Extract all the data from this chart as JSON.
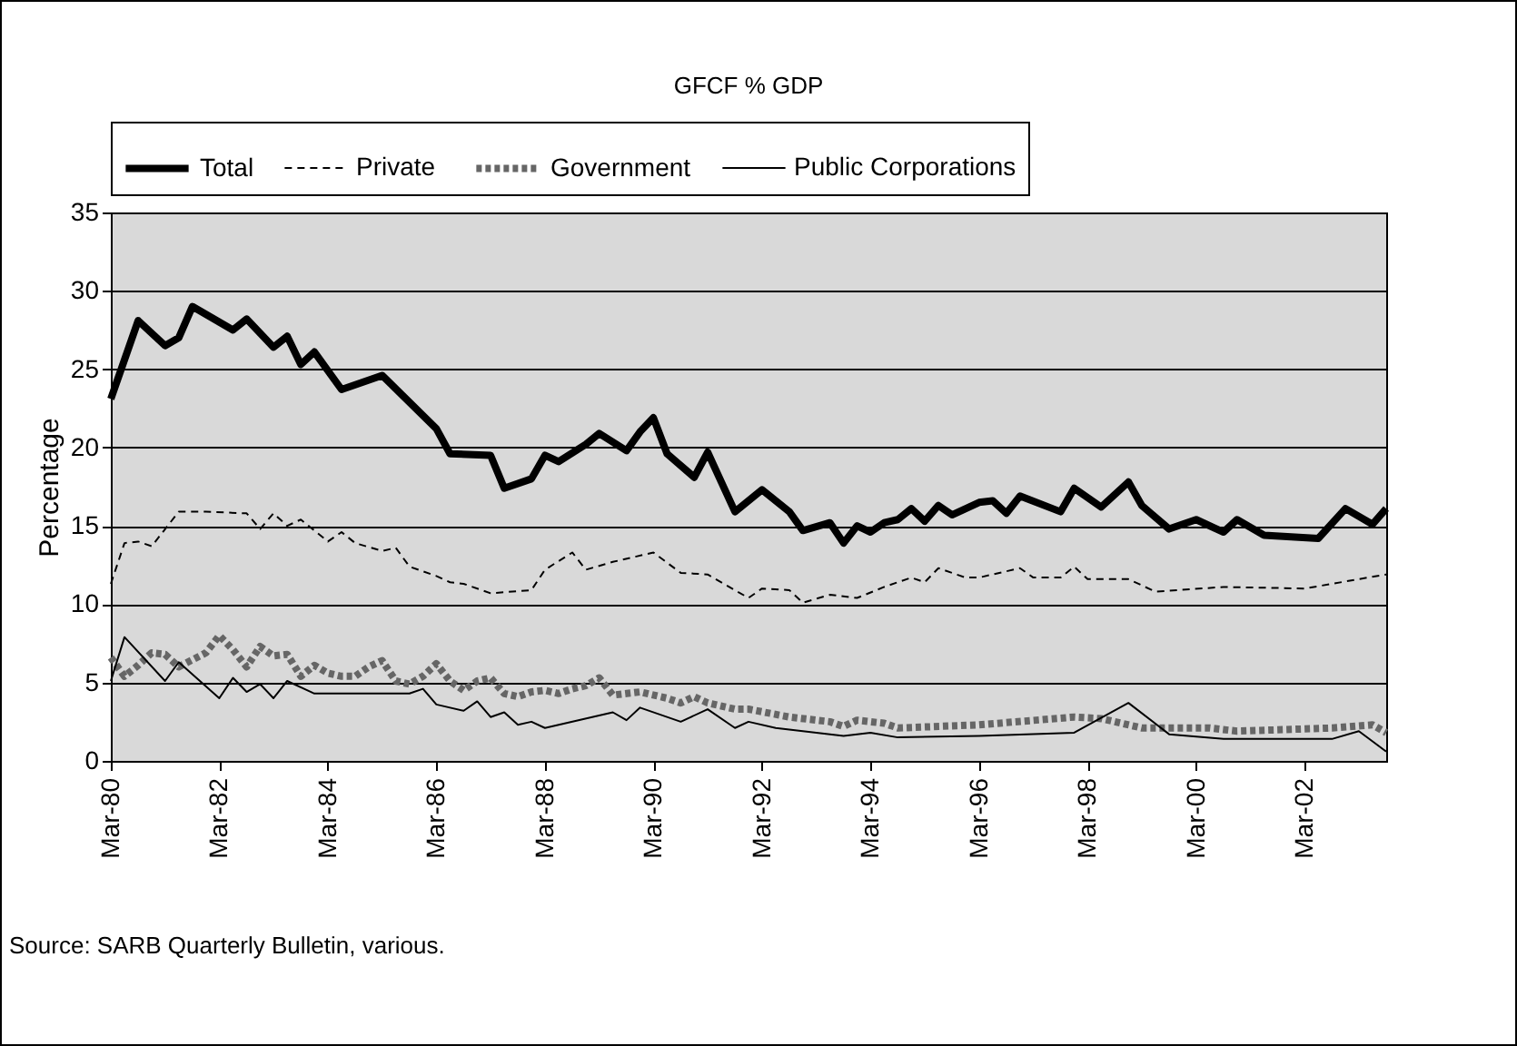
{
  "chart_data": {
    "type": "line",
    "title": "GFCF % GDP",
    "ylabel": "Percentage",
    "annotations": [
      "Source:   SARB Quarterly Bulletin, various."
    ],
    "legend": "top",
    "grid": "y",
    "xlim": [
      "1980-03",
      "2003-09"
    ],
    "xticks": [
      {
        "value": "1980-03",
        "label": "Mar-80"
      },
      {
        "value": "1982-03",
        "label": "Mar-82"
      },
      {
        "value": "1984-03",
        "label": "Mar-84"
      },
      {
        "value": "1986-03",
        "label": "Mar-86"
      },
      {
        "value": "1988-03",
        "label": "Mar-88"
      },
      {
        "value": "1990-03",
        "label": "Mar-90"
      },
      {
        "value": "1992-03",
        "label": "Mar-92"
      },
      {
        "value": "1994-03",
        "label": "Mar-94"
      },
      {
        "value": "1996-03",
        "label": "Mar-96"
      },
      {
        "value": "1998-03",
        "label": "Mar-98"
      },
      {
        "value": "2000-03",
        "label": "Mar-00"
      },
      {
        "value": "2002-03",
        "label": "Mar-02"
      }
    ],
    "ylim": [
      0,
      35
    ],
    "yticks": [
      0,
      5,
      10,
      15,
      20,
      25,
      30,
      35
    ],
    "series": [
      {
        "name": "Total",
        "color": "#000000",
        "line_style": "solid",
        "x": [
          "1980-03",
          "1980-09",
          "1981-03",
          "1981-06",
          "1981-09",
          "1982-06",
          "1982-09",
          "1983-03",
          "1983-06",
          "1983-09",
          "1983-12",
          "1984-06",
          "1985-03",
          "1986-03",
          "1986-06",
          "1987-03",
          "1987-06",
          "1987-12",
          "1988-03",
          "1988-06",
          "1988-12",
          "1989-03",
          "1989-09",
          "1989-12",
          "1990-03",
          "1990-06",
          "1990-12",
          "1991-03",
          "1991-09",
          "1992-03",
          "1992-09",
          "1992-12",
          "1993-06",
          "1993-09",
          "1993-12",
          "1994-03",
          "1994-06",
          "1994-09",
          "1994-12",
          "1995-03",
          "1995-06",
          "1995-09",
          "1996-03",
          "1996-06",
          "1996-09",
          "1996-12",
          "1997-09",
          "1997-12",
          "1998-06",
          "1998-12",
          "1999-03",
          "1999-09",
          "2000-03",
          "2000-09",
          "2000-12",
          "2001-06",
          "2002-06",
          "2002-12",
          "2003-06",
          "2003-09"
        ],
        "values": [
          23.1,
          28.1,
          26.5,
          27.0,
          29.0,
          27.5,
          28.2,
          26.4,
          27.1,
          25.3,
          26.1,
          23.7,
          24.6,
          21.2,
          19.6,
          19.5,
          17.4,
          18.0,
          19.5,
          19.1,
          20.2,
          20.9,
          19.8,
          21.0,
          21.9,
          19.6,
          18.1,
          19.7,
          15.9,
          17.3,
          15.9,
          14.7,
          15.2,
          13.9,
          15.0,
          14.6,
          15.2,
          15.4,
          16.1,
          15.3,
          16.3,
          15.7,
          16.5,
          16.6,
          15.8,
          16.9,
          15.9,
          17.4,
          16.2,
          17.8,
          16.3,
          14.8,
          15.4,
          14.6,
          15.4,
          14.4,
          14.2,
          16.1,
          15.1,
          16.1
        ]
      },
      {
        "name": "Private",
        "color": "#000000",
        "line_style": "dashed",
        "x": [
          "1980-03",
          "1980-06",
          "1980-09",
          "1980-12",
          "1981-06",
          "1981-12",
          "1982-09",
          "1982-12",
          "1983-03",
          "1983-06",
          "1983-09",
          "1984-03",
          "1984-06",
          "1984-09",
          "1985-03",
          "1985-06",
          "1985-09",
          "1986-03",
          "1986-06",
          "1986-09",
          "1987-03",
          "1987-12",
          "1988-03",
          "1988-09",
          "1988-12",
          "1989-06",
          "1990-03",
          "1990-09",
          "1991-03",
          "1991-12",
          "1992-03",
          "1992-09",
          "1992-12",
          "1993-06",
          "1993-12",
          "1994-06",
          "1994-12",
          "1995-03",
          "1995-06",
          "1995-12",
          "1996-03",
          "1996-12",
          "1997-03",
          "1997-09",
          "1997-12",
          "1998-03",
          "1998-12",
          "1999-06",
          "2000-09",
          "2002-03",
          "2003-09"
        ],
        "values": [
          11.3,
          13.9,
          14.0,
          13.7,
          15.9,
          15.9,
          15.8,
          14.8,
          15.8,
          15.0,
          15.4,
          14.0,
          14.6,
          13.9,
          13.4,
          13.6,
          12.4,
          11.8,
          11.4,
          11.3,
          10.7,
          10.9,
          12.2,
          13.3,
          12.2,
          12.7,
          13.3,
          12.0,
          11.9,
          10.4,
          11.0,
          10.9,
          10.1,
          10.6,
          10.4,
          11.1,
          11.7,
          11.4,
          12.3,
          11.7,
          11.7,
          12.3,
          11.7,
          11.7,
          12.4,
          11.6,
          11.6,
          10.8,
          11.1,
          11.0,
          11.9
        ]
      },
      {
        "name": "Government",
        "color": "#666666",
        "line_style": "dotted",
        "x": [
          "1980-03",
          "1980-06",
          "1980-09",
          "1980-12",
          "1981-03",
          "1981-06",
          "1981-12",
          "1982-03",
          "1982-06",
          "1982-09",
          "1982-12",
          "1983-03",
          "1983-06",
          "1983-09",
          "1983-12",
          "1984-03",
          "1984-06",
          "1984-09",
          "1984-12",
          "1985-03",
          "1985-06",
          "1985-09",
          "1985-12",
          "1986-03",
          "1986-06",
          "1986-09",
          "1986-12",
          "1987-03",
          "1987-06",
          "1987-09",
          "1987-12",
          "1988-03",
          "1988-06",
          "1988-09",
          "1988-12",
          "1989-03",
          "1989-06",
          "1989-09",
          "1989-12",
          "1990-06",
          "1990-09",
          "1990-12",
          "1991-03",
          "1991-09",
          "1991-12",
          "1992-09",
          "1993-06",
          "1993-09",
          "1993-12",
          "1994-06",
          "1994-09",
          "1996-03",
          "1997-12",
          "1998-06",
          "1999-03",
          "2000-06",
          "2000-12",
          "2002-09",
          "2003-06",
          "2003-09"
        ],
        "values": [
          6.6,
          5.4,
          6.1,
          6.9,
          6.8,
          6.0,
          6.9,
          8.0,
          7.1,
          6.0,
          7.3,
          6.7,
          6.8,
          5.4,
          6.1,
          5.6,
          5.4,
          5.4,
          6.0,
          6.4,
          5.1,
          4.9,
          5.4,
          6.2,
          5.1,
          4.5,
          5.1,
          5.3,
          4.3,
          4.1,
          4.4,
          4.5,
          4.3,
          4.6,
          4.8,
          5.3,
          4.2,
          4.3,
          4.4,
          4.0,
          3.7,
          4.1,
          3.7,
          3.3,
          3.3,
          2.8,
          2.5,
          2.2,
          2.6,
          2.4,
          2.1,
          2.3,
          2.8,
          2.7,
          2.1,
          2.1,
          1.9,
          2.1,
          2.3,
          1.8
        ]
      },
      {
        "name": "Public Corporations",
        "color": "#000000",
        "line_style": "solid",
        "x": [
          "1980-03",
          "1980-06",
          "1981-03",
          "1981-06",
          "1982-03",
          "1982-06",
          "1982-09",
          "1982-12",
          "1983-03",
          "1983-06",
          "1983-12",
          "1985-09",
          "1985-12",
          "1986-03",
          "1986-09",
          "1986-12",
          "1987-03",
          "1987-06",
          "1987-09",
          "1987-12",
          "1988-03",
          "1989-06",
          "1989-09",
          "1989-12",
          "1990-09",
          "1991-03",
          "1991-09",
          "1991-12",
          "1992-06",
          "1993-09",
          "1994-03",
          "1994-09",
          "1996-03",
          "1997-12",
          "1998-12",
          "1999-09",
          "2000-09",
          "2002-09",
          "2003-03",
          "2003-09"
        ],
        "values": [
          5.1,
          7.9,
          5.1,
          6.3,
          4.0,
          5.3,
          4.4,
          4.9,
          4.0,
          5.1,
          4.3,
          4.3,
          4.6,
          3.6,
          3.2,
          3.8,
          2.8,
          3.1,
          2.3,
          2.5,
          2.1,
          3.1,
          2.6,
          3.4,
          2.5,
          3.3,
          2.1,
          2.5,
          2.1,
          1.6,
          1.8,
          1.5,
          1.6,
          1.8,
          3.7,
          1.7,
          1.4,
          1.4,
          1.9,
          0.6
        ]
      }
    ]
  }
}
